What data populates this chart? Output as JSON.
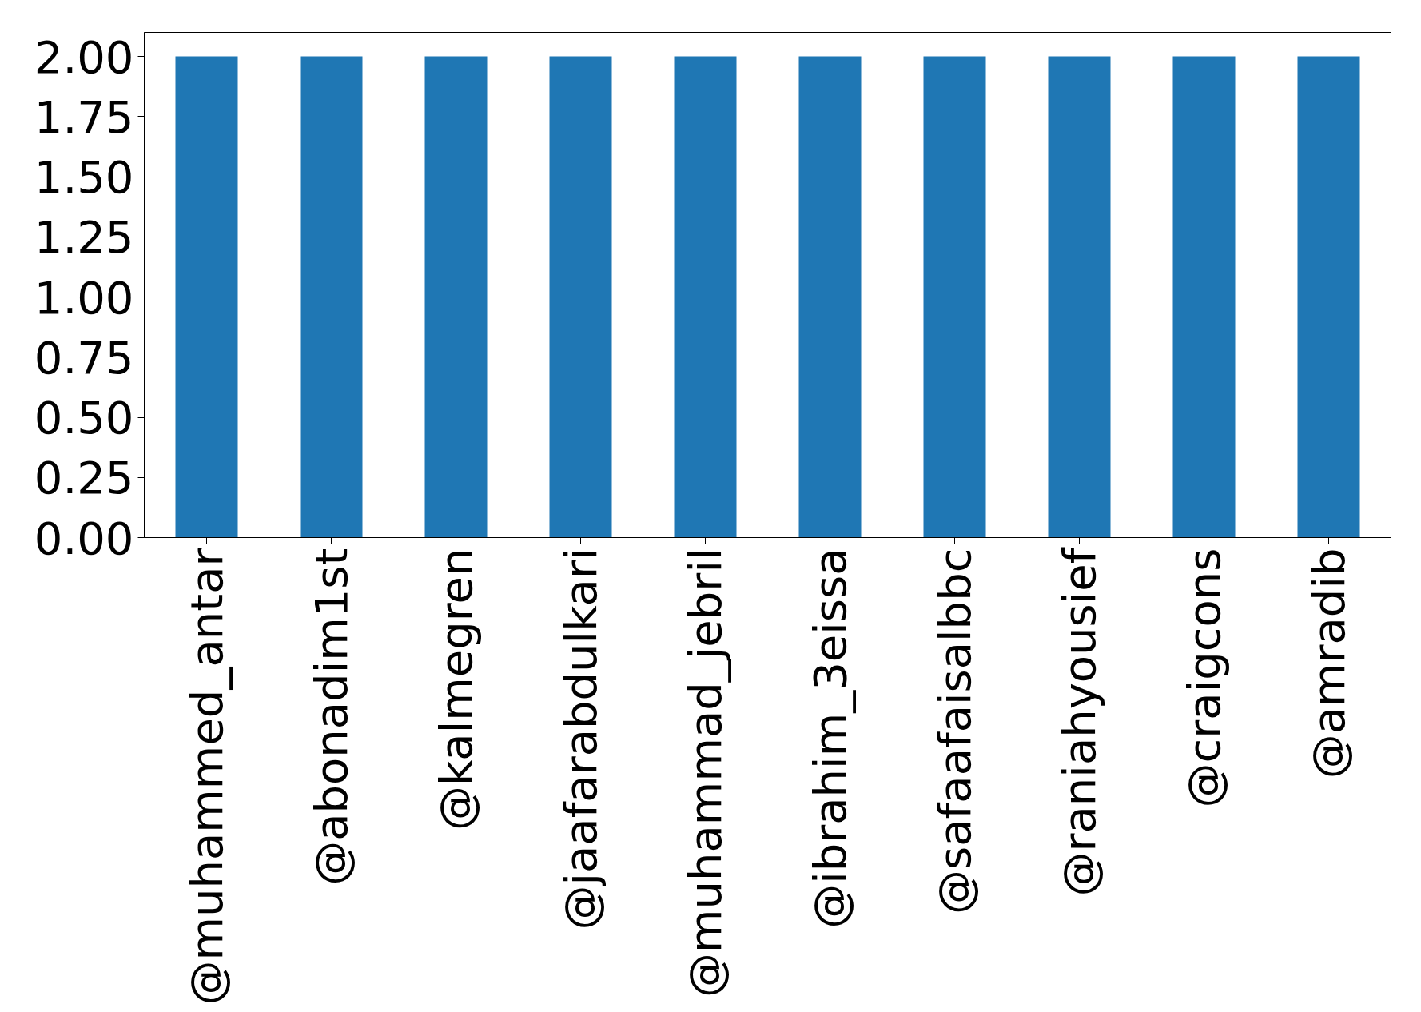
{
  "chart_data": {
    "type": "bar",
    "categories": [
      "@muhammed_antar",
      "@abonadim1st",
      "@kalmegren",
      "@jaafarabdulkari",
      "@muhammad_jebril",
      "@ibrahim_3eissa",
      "@safaafaisalbbc",
      "@raniahyousief",
      "@craigcons",
      "@amradib"
    ],
    "values": [
      2,
      2,
      2,
      2,
      2,
      2,
      2,
      2,
      2,
      2
    ],
    "color": "#1f77b4",
    "ylim": [
      0,
      2.1
    ],
    "yticks": [
      {
        "value": 0,
        "label": "0.00"
      },
      {
        "value": 0.25,
        "label": "0.25"
      },
      {
        "value": 0.5,
        "label": "0.50"
      },
      {
        "value": 0.75,
        "label": "0.75"
      },
      {
        "value": 1,
        "label": "1.00"
      },
      {
        "value": 1.25,
        "label": "1.25"
      },
      {
        "value": 1.5,
        "label": "1.50"
      },
      {
        "value": 1.75,
        "label": "1.75"
      },
      {
        "value": 2,
        "label": "2.00"
      }
    ],
    "grid": false
  }
}
